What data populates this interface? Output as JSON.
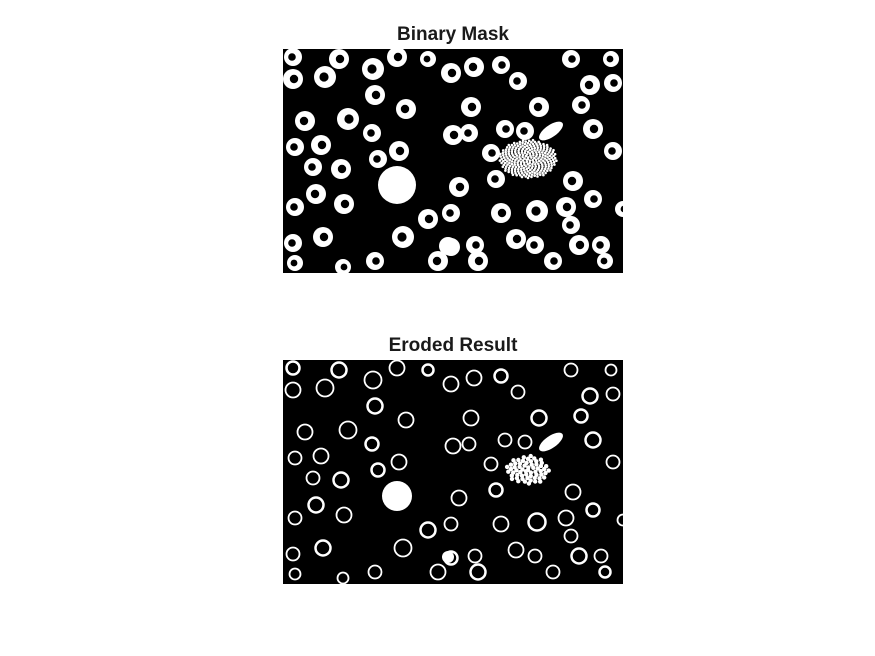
{
  "figure": {
    "panels": [
      {
        "title": "Binary Mask"
      },
      {
        "title": "Eroded Result"
      }
    ],
    "colors": {
      "background": "#ffffff",
      "mask_bg": "#000000",
      "mask_fg": "#ffffff"
    }
  }
}
